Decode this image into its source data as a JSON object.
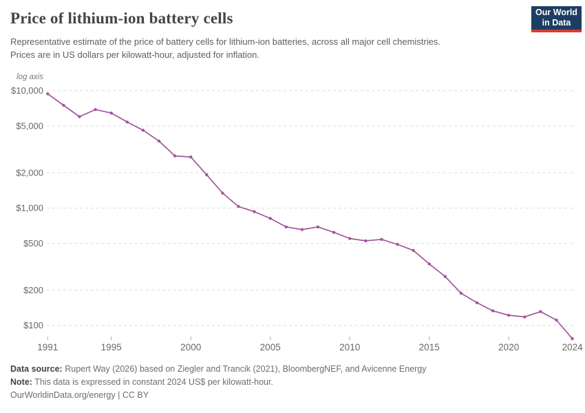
{
  "header": {
    "title": "Price of lithium-ion battery cells",
    "subtitle_lines": [
      "Representative estimate of the price of battery cells for lithium-ion batteries, across all major cell chemistries.",
      "Prices are in US dollars per kilowatt-hour, adjusted for inflation."
    ]
  },
  "logo": {
    "line1": "Our World",
    "line2": "in Data"
  },
  "colors": {
    "line": "#a2559c",
    "logo_bg": "#1d3d63",
    "logo_bar": "#d93a32",
    "grid": "#dcdcdc",
    "axis_text": "#666666"
  },
  "chart_data": {
    "type": "line",
    "title": "Price of lithium-ion battery cells",
    "yscale": "log",
    "axis_note": "log axis",
    "grid": "horizontal-dashed",
    "legend": "none",
    "xlim": [
      1991,
      2024
    ],
    "ylim": [
      77,
      10000
    ],
    "x": [
      1991,
      1992,
      1993,
      1994,
      1995,
      1996,
      1997,
      1998,
      1999,
      2000,
      2001,
      2002,
      2003,
      2004,
      2005,
      2006,
      2007,
      2008,
      2009,
      2010,
      2011,
      2012,
      2013,
      2014,
      2015,
      2016,
      2017,
      2018,
      2019,
      2020,
      2021,
      2022,
      2023,
      2024
    ],
    "series": [
      {
        "name": "Price of lithium-ion battery cells",
        "color": "#a2559c",
        "values": [
          9400,
          7500,
          6000,
          6900,
          6450,
          5400,
          4600,
          3720,
          2780,
          2720,
          1920,
          1340,
          1030,
          930,
          815,
          690,
          655,
          690,
          620,
          550,
          525,
          540,
          490,
          435,
          334,
          261,
          188,
          156,
          133,
          122,
          118,
          131,
          111,
          77
        ]
      }
    ],
    "yticks": [
      {
        "value": 10000,
        "label": "$10,000"
      },
      {
        "value": 5000,
        "label": "$5,000"
      },
      {
        "value": 2000,
        "label": "$2,000"
      },
      {
        "value": 1000,
        "label": "$1,000"
      },
      {
        "value": 500,
        "label": "$500"
      },
      {
        "value": 200,
        "label": "$200"
      },
      {
        "value": 100,
        "label": "$100"
      }
    ],
    "xticks": [
      {
        "value": 1991,
        "label": "1991"
      },
      {
        "value": 1995,
        "label": "1995"
      },
      {
        "value": 2000,
        "label": "2000"
      },
      {
        "value": 2005,
        "label": "2005"
      },
      {
        "value": 2010,
        "label": "2010"
      },
      {
        "value": 2015,
        "label": "2015"
      },
      {
        "value": 2020,
        "label": "2020"
      },
      {
        "value": 2024,
        "label": "2024"
      }
    ]
  },
  "footer": {
    "source_label": "Data source:",
    "source": "Rupert Way (2026) based on Ziegler and Trancik (2021), BloombergNEF, and Avicenne Energy",
    "note_label": "Note:",
    "note": "This data is expressed in constant 2024 US$ per kilowatt-hour.",
    "url": "OurWorldinData.org/energy",
    "separator": "|",
    "license": "CC BY"
  }
}
